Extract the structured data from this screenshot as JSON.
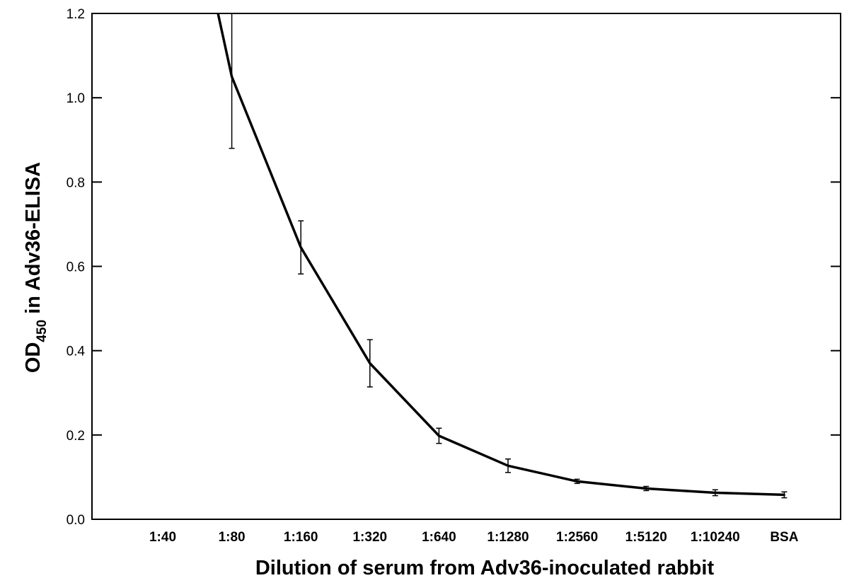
{
  "chart_data": {
    "type": "line",
    "title": "",
    "xlabel": "Dilution of serum from Adv36-inoculated rabbit",
    "ylabel": {
      "prefix": "OD",
      "subscript": "450",
      "suffix": " in Adv36-ELISA"
    },
    "ylim": [
      0,
      1.2
    ],
    "yticks": [
      "0.0",
      "0.2",
      "0.4",
      "0.6",
      "0.8",
      "1.0",
      "1.2"
    ],
    "categories": [
      "1:40",
      "1:80",
      "1:160",
      "1:320",
      "1:640",
      "1:1280",
      "1:2560",
      "1:5120",
      "1:10240",
      "BSA"
    ],
    "series": [
      {
        "values": [
          null,
          1.05,
          0.645,
          0.37,
          0.198,
          0.127,
          0.09,
          0.073,
          0.063,
          0.058
        ],
        "errors": [
          null,
          0.17,
          0.063,
          0.056,
          0.018,
          0.016,
          0.005,
          0.005,
          0.007,
          0.007
        ],
        "color": "#000000"
      }
    ],
    "curve_start": {
      "category_index": 0.8,
      "value": 1.2
    },
    "grid": false,
    "legend": "none"
  }
}
